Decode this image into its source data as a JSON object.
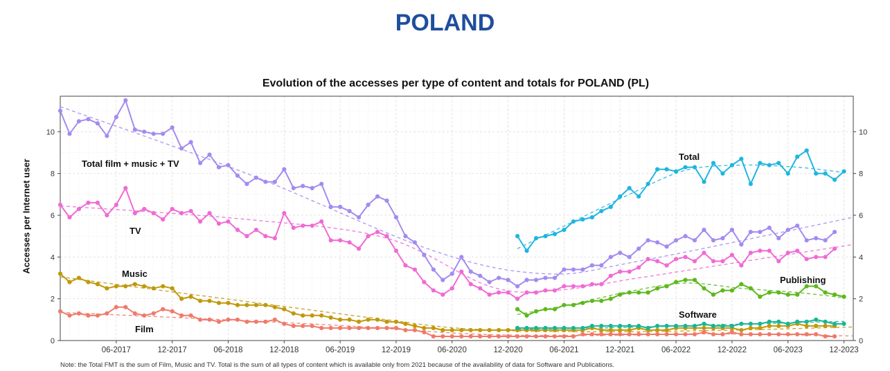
{
  "page_title": "POLAND",
  "note": "Note: the Total FMT is the sum of Film, Music and TV. Total is the sum of all types of content which is available only from 2021 because of the availability of data for Software and Publications.",
  "chart_data": {
    "type": "line",
    "title": "Evolution of the accesses per type of content and totals for POLAND (PL)",
    "xlabel": "",
    "ylabel": "Accesses per Internet user",
    "xlim": [
      0,
      85
    ],
    "ylim": [
      0,
      11.7
    ],
    "x_ticks": [
      {
        "x": 6,
        "label": "06-2017"
      },
      {
        "x": 12,
        "label": "12-2017"
      },
      {
        "x": 18,
        "label": "06-2018"
      },
      {
        "x": 24,
        "label": "12-2018"
      },
      {
        "x": 30,
        "label": "06-2019"
      },
      {
        "x": 36,
        "label": "12-2019"
      },
      {
        "x": 42,
        "label": "06-2020"
      },
      {
        "x": 48,
        "label": "12-2020"
      },
      {
        "x": 54,
        "label": "06-2021"
      },
      {
        "x": 60,
        "label": "12-2021"
      },
      {
        "x": 66,
        "label": "06-2022"
      },
      {
        "x": 72,
        "label": "12-2022"
      },
      {
        "x": 78,
        "label": "06-2023"
      },
      {
        "x": 84,
        "label": "12-2023"
      }
    ],
    "y_ticks": [
      0,
      2,
      4,
      6,
      8,
      10
    ],
    "grid": true,
    "series": [
      {
        "name": "Total film + music + TV",
        "color": "#a38bf0",
        "start": 0,
        "values": [
          11.0,
          9.9,
          10.5,
          10.6,
          10.4,
          9.8,
          10.7,
          11.5,
          10.1,
          10.0,
          9.9,
          9.9,
          10.2,
          9.2,
          9.5,
          8.5,
          8.9,
          8.3,
          8.4,
          7.9,
          7.5,
          7.8,
          7.6,
          7.6,
          8.2,
          7.3,
          7.4,
          7.3,
          7.5,
          6.4,
          6.4,
          6.2,
          5.9,
          6.5,
          6.9,
          6.7,
          5.9,
          5.0,
          4.7,
          4.1,
          3.4,
          2.9,
          3.2,
          4.0,
          3.3,
          3.1,
          2.8,
          3.0,
          2.9,
          2.6,
          2.9,
          2.9,
          3.0,
          3.0,
          3.4,
          3.4,
          3.4,
          3.6,
          3.6,
          4.0,
          4.2,
          4.0,
          4.4,
          4.8,
          4.7,
          4.5,
          4.8,
          5.0,
          4.8,
          5.3,
          4.8,
          4.9,
          5.3,
          4.6,
          5.2,
          5.2,
          5.4,
          4.9,
          5.3,
          5.5,
          4.8,
          4.9,
          4.8,
          5.2
        ],
        "trend": [
          [
            0,
            11.2
          ],
          [
            20,
            8.0
          ],
          [
            40,
            4.3
          ],
          [
            52,
            3.2
          ],
          [
            62,
            3.8
          ],
          [
            85,
            5.9
          ]
        ]
      },
      {
        "name": "TV",
        "color": "#f06ad4",
        "start": 0,
        "values": [
          6.5,
          5.9,
          6.3,
          6.6,
          6.6,
          6.0,
          6.5,
          7.3,
          6.1,
          6.3,
          6.1,
          5.8,
          6.3,
          6.1,
          6.2,
          5.7,
          6.1,
          5.6,
          5.7,
          5.3,
          5.0,
          5.3,
          5.0,
          4.9,
          6.1,
          5.4,
          5.5,
          5.5,
          5.7,
          4.8,
          4.8,
          4.7,
          4.4,
          5.0,
          5.2,
          5.0,
          4.3,
          3.6,
          3.4,
          2.8,
          2.4,
          2.2,
          2.5,
          3.3,
          2.7,
          2.5,
          2.2,
          2.3,
          2.3,
          2.0,
          2.3,
          2.3,
          2.4,
          2.4,
          2.6,
          2.6,
          2.6,
          2.7,
          2.7,
          3.1,
          3.3,
          3.3,
          3.5,
          3.9,
          3.8,
          3.6,
          3.9,
          4.0,
          3.8,
          4.2,
          3.8,
          3.8,
          4.1,
          3.6,
          4.2,
          4.3,
          4.3,
          3.8,
          4.2,
          4.3,
          3.9,
          4.0,
          4.0,
          4.4
        ],
        "trend": [
          [
            0,
            6.45
          ],
          [
            20,
            5.8
          ],
          [
            35,
            4.9
          ],
          [
            46,
            2.6
          ],
          [
            53,
            2.4
          ],
          [
            62,
            3.0
          ],
          [
            72,
            3.7
          ],
          [
            85,
            4.6
          ]
        ]
      },
      {
        "name": "Music",
        "color": "#c0980a",
        "start": 0,
        "values": [
          3.2,
          2.8,
          3.0,
          2.8,
          2.7,
          2.5,
          2.6,
          2.6,
          2.7,
          2.6,
          2.5,
          2.6,
          2.5,
          2.0,
          2.1,
          1.9,
          1.9,
          1.8,
          1.8,
          1.7,
          1.7,
          1.7,
          1.7,
          1.6,
          1.5,
          1.3,
          1.2,
          1.2,
          1.2,
          1.1,
          1.0,
          1.0,
          0.9,
          1.0,
          1.0,
          0.9,
          0.9,
          0.8,
          0.7,
          0.6,
          0.6,
          0.5,
          0.5,
          0.5,
          0.5,
          0.5,
          0.5,
          0.5,
          0.5,
          0.5,
          0.5,
          0.5,
          0.5,
          0.5,
          0.5,
          0.5,
          0.5,
          0.6,
          0.5,
          0.5,
          0.5,
          0.5,
          0.6,
          0.5,
          0.5,
          0.5,
          0.6,
          0.6,
          0.6,
          0.6,
          0.6,
          0.6,
          0.6,
          0.5,
          0.6,
          0.6,
          0.7,
          0.7,
          0.7,
          0.8,
          0.7,
          0.7,
          0.7,
          0.7
        ],
        "trend": [
          [
            0,
            3.05
          ],
          [
            10,
            2.45
          ],
          [
            22,
            1.75
          ],
          [
            34,
            1.05
          ],
          [
            44,
            0.55
          ],
          [
            58,
            0.42
          ],
          [
            72,
            0.5
          ],
          [
            85,
            0.65
          ]
        ]
      },
      {
        "name": "Film",
        "color": "#f07a6a",
        "start": 0,
        "values": [
          1.4,
          1.2,
          1.3,
          1.2,
          1.2,
          1.3,
          1.6,
          1.6,
          1.3,
          1.2,
          1.3,
          1.5,
          1.4,
          1.2,
          1.2,
          1.0,
          1.0,
          0.9,
          1.0,
          1.0,
          0.9,
          0.9,
          0.9,
          1.0,
          0.8,
          0.7,
          0.7,
          0.7,
          0.6,
          0.6,
          0.6,
          0.6,
          0.6,
          0.6,
          0.6,
          0.6,
          0.6,
          0.5,
          0.5,
          0.4,
          0.2,
          0.2,
          0.2,
          0.2,
          0.2,
          0.2,
          0.2,
          0.2,
          0.2,
          0.2,
          0.2,
          0.2,
          0.2,
          0.2,
          0.2,
          0.2,
          0.3,
          0.3,
          0.3,
          0.3,
          0.3,
          0.3,
          0.3,
          0.3,
          0.3,
          0.3,
          0.3,
          0.3,
          0.3,
          0.4,
          0.3,
          0.3,
          0.4,
          0.3,
          0.3,
          0.3,
          0.3,
          0.3,
          0.3,
          0.3,
          0.3,
          0.3,
          0.2,
          0.2
        ],
        "trend": [
          [
            0,
            1.35
          ],
          [
            15,
            1.05
          ],
          [
            30,
            0.72
          ],
          [
            45,
            0.3
          ],
          [
            58,
            0.25
          ],
          [
            70,
            0.32
          ],
          [
            85,
            0.22
          ]
        ]
      },
      {
        "name": "Total",
        "color": "#1fb5e0",
        "start": 49,
        "values": [
          5.0,
          4.3,
          4.9,
          5.0,
          5.1,
          5.3,
          5.7,
          5.8,
          5.9,
          6.2,
          6.4,
          6.9,
          7.3,
          6.9,
          7.5,
          8.2,
          8.2,
          8.1,
          8.3,
          8.3,
          7.6,
          8.5,
          8.0,
          8.4,
          8.7,
          7.5,
          8.5,
          8.4,
          8.5,
          8.0,
          8.8,
          9.1,
          8.0,
          8.0,
          7.7,
          8.1
        ],
        "trend": [
          [
            49,
            4.4
          ],
          [
            55,
            5.7
          ],
          [
            61,
            7.0
          ],
          [
            67,
            8.15
          ],
          [
            73,
            8.4
          ],
          [
            79,
            8.3
          ],
          [
            84,
            8.05
          ]
        ]
      },
      {
        "name": "Publishing",
        "color": "#5db81c",
        "start": 49,
        "values": [
          1.5,
          1.2,
          1.4,
          1.5,
          1.5,
          1.7,
          1.7,
          1.8,
          1.9,
          1.9,
          2.0,
          2.2,
          2.3,
          2.3,
          2.3,
          2.5,
          2.6,
          2.8,
          2.9,
          2.9,
          2.5,
          2.2,
          2.4,
          2.4,
          2.7,
          2.5,
          2.1,
          2.3,
          2.3,
          2.2,
          2.2,
          2.6,
          2.6,
          2.3,
          2.2,
          2.1
        ],
        "trend": [
          [
            49,
            1.25
          ],
          [
            55,
            1.75
          ],
          [
            61,
            2.35
          ],
          [
            67,
            2.75
          ],
          [
            73,
            2.5
          ],
          [
            79,
            2.3
          ],
          [
            84,
            2.05
          ]
        ]
      },
      {
        "name": "Software",
        "color": "#18b595",
        "start": 49,
        "values": [
          0.6,
          0.6,
          0.6,
          0.6,
          0.6,
          0.6,
          0.6,
          0.6,
          0.7,
          0.7,
          0.7,
          0.7,
          0.7,
          0.7,
          0.6,
          0.7,
          0.7,
          0.7,
          0.7,
          0.7,
          0.8,
          0.7,
          0.7,
          0.7,
          0.8,
          0.8,
          0.8,
          0.9,
          0.9,
          0.8,
          0.9,
          0.9,
          1.0,
          0.9,
          0.8,
          0.8
        ],
        "trend": [
          [
            49,
            0.55
          ],
          [
            60,
            0.62
          ],
          [
            70,
            0.75
          ],
          [
            84,
            0.92
          ]
        ]
      }
    ],
    "annotations": [
      {
        "series": "Total film + music + TV",
        "text": "Total film + music + TV"
      },
      {
        "series": "TV",
        "text": "TV"
      },
      {
        "series": "Music",
        "text": "Music"
      },
      {
        "series": "Film",
        "text": "Film"
      },
      {
        "series": "Total",
        "text": "Total"
      },
      {
        "series": "Publishing",
        "text": "Publishing"
      },
      {
        "series": "Software",
        "text": "Software"
      }
    ]
  }
}
